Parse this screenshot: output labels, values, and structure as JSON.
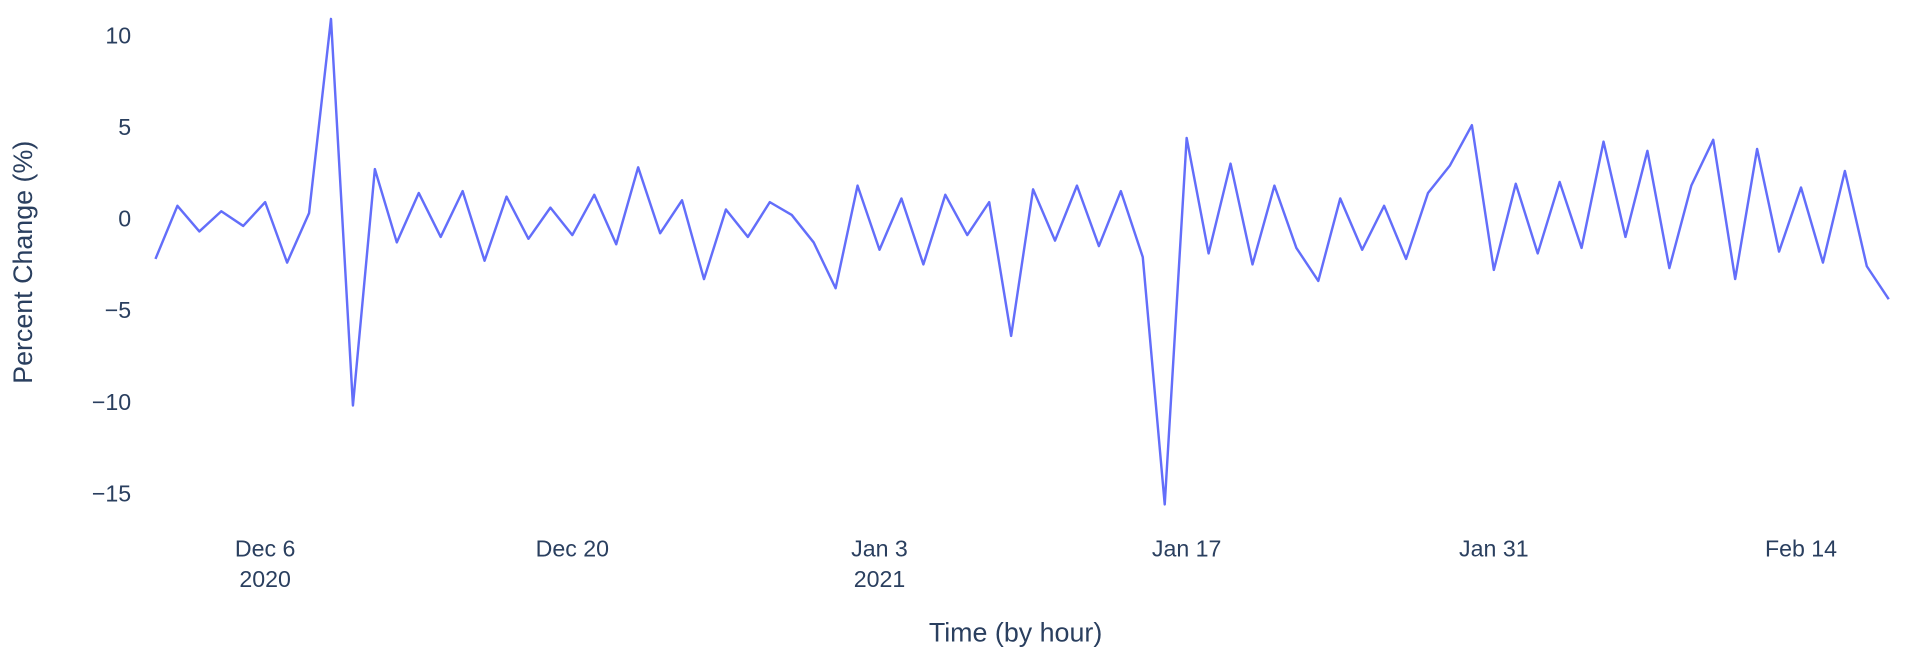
{
  "chart_data": {
    "type": "line",
    "xlabel": "Time (by hour)",
    "ylabel": "Percent Change (%)",
    "x": [
      "2020-12-01",
      "2020-12-02",
      "2020-12-03",
      "2020-12-04",
      "2020-12-05",
      "2020-12-06",
      "2020-12-07",
      "2020-12-08",
      "2020-12-09",
      "2020-12-10",
      "2020-12-11",
      "2020-12-12",
      "2020-12-13",
      "2020-12-14",
      "2020-12-15",
      "2020-12-16",
      "2020-12-17",
      "2020-12-18",
      "2020-12-19",
      "2020-12-20",
      "2020-12-21",
      "2020-12-22",
      "2020-12-23",
      "2020-12-24",
      "2020-12-25",
      "2020-12-26",
      "2020-12-27",
      "2020-12-28",
      "2020-12-29",
      "2020-12-30",
      "2020-12-31",
      "2021-01-01",
      "2021-01-02",
      "2021-01-03",
      "2021-01-04",
      "2021-01-05",
      "2021-01-06",
      "2021-01-07",
      "2021-01-08",
      "2021-01-09",
      "2021-01-10",
      "2021-01-11",
      "2021-01-12",
      "2021-01-13",
      "2021-01-14",
      "2021-01-15",
      "2021-01-16",
      "2021-01-17",
      "2021-01-18",
      "2021-01-19",
      "2021-01-20",
      "2021-01-21",
      "2021-01-22",
      "2021-01-23",
      "2021-01-24",
      "2021-01-25",
      "2021-01-26",
      "2021-01-27",
      "2021-01-28",
      "2021-01-29",
      "2021-01-30",
      "2021-01-31",
      "2021-02-01",
      "2021-02-02",
      "2021-02-03",
      "2021-02-04",
      "2021-02-05",
      "2021-02-06",
      "2021-02-07",
      "2021-02-08",
      "2021-02-09",
      "2021-02-10",
      "2021-02-11",
      "2021-02-12",
      "2021-02-13",
      "2021-02-14",
      "2021-02-15",
      "2021-02-16",
      "2021-02-17",
      "2021-02-18"
    ],
    "series": [
      {
        "name": "Percent Change",
        "color": "#636efa",
        "values": [
          -2.1,
          0.8,
          -0.6,
          0.5,
          -0.3,
          1.0,
          -2.3,
          0.4,
          11,
          -10.1,
          2.8,
          -1.2,
          1.5,
          -0.9,
          1.6,
          -2.2,
          1.3,
          -1.0,
          0.7,
          -0.8,
          1.4,
          -1.3,
          2.9,
          -0.7,
          1.1,
          -3.2,
          0.6,
          -0.9,
          1.0,
          0.3,
          -1.2,
          -3.7,
          1.9,
          -1.6,
          1.2,
          -2.4,
          1.4,
          -0.8,
          1.0,
          -6.3,
          1.7,
          -1.1,
          1.9,
          -1.4,
          1.6,
          -2.0,
          -15.5,
          4.5,
          -1.8,
          3.1,
          -2.4,
          1.9,
          -1.5,
          -3.3,
          1.2,
          -1.6,
          0.8,
          -2.1,
          1.5,
          3.0,
          5.2,
          -2.7,
          2.0,
          -1.8,
          2.1,
          -1.5,
          4.3,
          -0.9,
          3.8,
          -2.6,
          1.9,
          4.4,
          -3.2,
          3.9,
          -1.7,
          1.8,
          -2.3,
          2.7,
          -2.5,
          -4.3
        ]
      }
    ],
    "xlim": [
      "2020-11-30 04:00",
      "2021-02-18 07:00"
    ],
    "xticks": [
      {
        "value": "2020-12-06",
        "label": "Dec 6",
        "year": "2020"
      },
      {
        "value": "2020-12-20",
        "label": "Dec 20"
      },
      {
        "value": "2021-01-03",
        "label": "Jan 3",
        "year": "2021"
      },
      {
        "value": "2021-01-17",
        "label": "Jan 17"
      },
      {
        "value": "2021-01-31",
        "label": "Jan 31"
      },
      {
        "value": "2021-02-14",
        "label": "Feb 14"
      }
    ],
    "ylim": [
      -16.6,
      10.9
    ],
    "yticks": [
      {
        "value": -15,
        "label": "−15"
      },
      {
        "value": -10,
        "label": "−10"
      },
      {
        "value": -5,
        "label": "−5"
      },
      0,
      5,
      10
    ],
    "grid": false
  }
}
